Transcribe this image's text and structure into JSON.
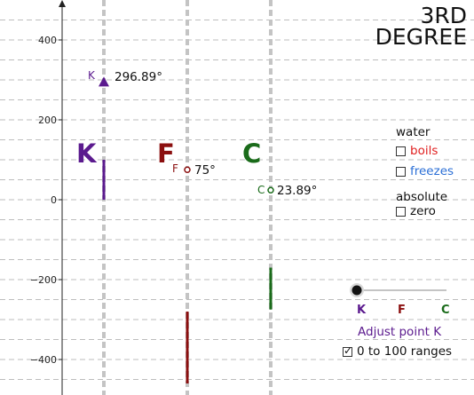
{
  "title": {
    "line1": "3RD",
    "line2": "DEGREE"
  },
  "y_axis": {
    "ticks": [
      400,
      200,
      0,
      -200,
      -400
    ],
    "tick_labels": [
      "400",
      "200",
      "0",
      "−200",
      "−400"
    ]
  },
  "scales": {
    "K": {
      "letter": "K",
      "color": "#5b1a8e",
      "point_label": "K",
      "point_value": "296.89°",
      "segment": [
        0,
        100
      ]
    },
    "F": {
      "letter": "F",
      "color": "#8b0f0f",
      "point_label": "F",
      "point_value": "75°",
      "segment": [
        -280,
        -460
      ]
    },
    "C": {
      "letter": "C",
      "color": "#1a6b1a",
      "point_label": "C",
      "point_value": "23.89°",
      "segment": [
        -170,
        -275
      ]
    }
  },
  "panel": {
    "water_heading": "water",
    "boils_label": "boils",
    "boils_color": "#e02020",
    "freezes_label": "freezes",
    "freezes_color": "#2b6fd6",
    "absolute_heading": "absolute",
    "zero_label": "zero"
  },
  "slider": {
    "legend_K": "K",
    "legend_F": "F",
    "legend_C": "C",
    "caption": "Adjust point K",
    "caption_color": "#5b1a8e"
  },
  "ranges_checkbox": {
    "label": "0 to 100 ranges",
    "checked": true
  }
}
